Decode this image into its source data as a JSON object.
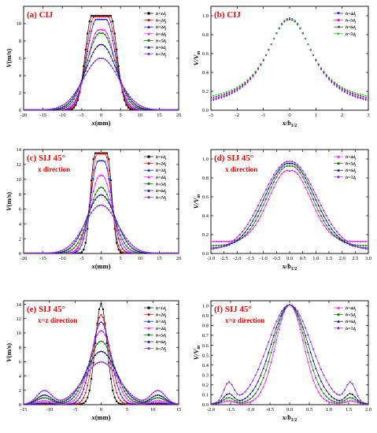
{
  "chart_data": [
    {
      "id": "a",
      "type": "line",
      "label_main": "(a) CIJ",
      "label_sub": "",
      "xlabel": "x(mm)",
      "ylabel": "V(m/s)",
      "xlim": [
        -20,
        20
      ],
      "ylim": [
        0,
        12
      ],
      "xticks": [
        -20,
        -15,
        -10,
        -5,
        0,
        5,
        10,
        15,
        20
      ],
      "yticks": [
        0,
        2,
        4,
        6,
        8,
        10
      ],
      "legend": "top-right",
      "profile": "plateau",
      "series": [
        {
          "name": "h=1dj",
          "color": "#000000",
          "marker": "square",
          "peak": 10.9,
          "width": 2.4,
          "core": 2.4
        },
        {
          "name": "h=2dj",
          "color": "#ff0000",
          "marker": "circle",
          "peak": 10.8,
          "width": 2.9,
          "core": 1.8
        },
        {
          "name": "h=3dj",
          "color": "#0000ff",
          "marker": "triangle",
          "peak": 10.5,
          "width": 3.5,
          "core": 1.2
        },
        {
          "name": "h=4dj",
          "color": "#ff00ff",
          "marker": "triangle",
          "peak": 9.3,
          "width": 4.2,
          "core": 0.6
        },
        {
          "name": "h=5dj",
          "color": "#008000",
          "marker": "circle",
          "peak": 8.9,
          "width": 4.8,
          "core": 0.3
        },
        {
          "name": "h=6dj",
          "color": "#000080",
          "marker": "triangle",
          "peak": 7.6,
          "width": 5.6,
          "core": 0
        },
        {
          "name": "h=7dj",
          "color": "#8a2be2",
          "marker": "circle",
          "peak": 6.0,
          "width": 6.4,
          "core": 0
        }
      ]
    },
    {
      "id": "b",
      "type": "scatter",
      "label_main": "(b) CIJ",
      "label_sub": "",
      "xlabel": "x/b1/2",
      "ylabel": "V/Vm",
      "xlim": [
        -3,
        3
      ],
      "ylim": [
        0,
        1.1
      ],
      "xticks": [
        -3,
        -2,
        -1,
        0,
        1,
        2,
        3
      ],
      "yticks": [
        0.0,
        0.2,
        0.4,
        0.6,
        0.8,
        1.0
      ],
      "legend": "top-right",
      "profile": "normalized",
      "series": [
        {
          "name": "h=4dj",
          "color": "#0000ff",
          "marker": "triangle-down",
          "tail": 0.03
        },
        {
          "name": "h=5dj",
          "color": "#ff00ff",
          "marker": "circle",
          "tail": 0.035
        },
        {
          "name": "h=6dj",
          "color": "#333333",
          "marker": "triangle-left",
          "tail": 0.04
        },
        {
          "name": "h=7dj",
          "color": "#00cc00",
          "marker": "triangle-right",
          "tail": 0.045
        }
      ]
    },
    {
      "id": "c",
      "type": "line",
      "label_main": "(c) SIJ 45°",
      "label_sub": "x direction",
      "xlabel": "x(mm)",
      "ylabel": "V(m/s)",
      "xlim": [
        -20,
        20
      ],
      "ylim": [
        0,
        14
      ],
      "xticks": [
        -20,
        -15,
        -10,
        -5,
        0,
        5,
        10,
        15,
        20
      ],
      "yticks": [
        0,
        2,
        4,
        6,
        8,
        10,
        12,
        14
      ],
      "legend": "top-right",
      "profile": "sij",
      "series": [
        {
          "name": "h=1dj",
          "color": "#000000",
          "marker": "square",
          "peak": 13.5,
          "width": 1.6,
          "core": 1.6
        },
        {
          "name": "h=2dj",
          "color": "#ff0000",
          "marker": "circle",
          "peak": 13.4,
          "width": 2.1,
          "core": 1.1
        },
        {
          "name": "h=3dj",
          "color": "#0000ff",
          "marker": "triangle",
          "peak": 12.5,
          "width": 2.8,
          "core": 0.7
        },
        {
          "name": "h=4dj",
          "color": "#ff00ff",
          "marker": "triangle",
          "peak": 10.5,
          "width": 3.6,
          "core": 0.3
        },
        {
          "name": "h=5dj",
          "color": "#008000",
          "marker": "circle",
          "peak": 8.9,
          "width": 4.4,
          "core": 0
        },
        {
          "name": "h=6dj",
          "color": "#000080",
          "marker": "triangle",
          "peak": 7.9,
          "width": 5.2,
          "core": 0
        },
        {
          "name": "h=7dj",
          "color": "#8a2be2",
          "marker": "circle",
          "peak": 6.5,
          "width": 6.0,
          "core": 0
        }
      ]
    },
    {
      "id": "d",
      "type": "line",
      "label_main": "(d) SIJ 45°",
      "label_sub": "x direction",
      "xlabel": "x/b1/2",
      "ylabel": "V/Vm",
      "xlim": [
        -3,
        3
      ],
      "ylim": [
        0,
        1.1
      ],
      "xticks": [
        -3.0,
        -2.5,
        -2.0,
        -1.5,
        -1.0,
        -0.5,
        0.0,
        0.5,
        1.0,
        1.5,
        2.0,
        2.5,
        3.0
      ],
      "yticks": [
        0.0,
        0.2,
        0.4,
        0.6,
        0.8,
        1.0
      ],
      "legend": "top-right",
      "profile": "normalized-spread",
      "series": [
        {
          "name": "h=4dj",
          "color": "#ff00ff",
          "marker": "triangle",
          "tail": 0.13,
          "sharp": 0.9
        },
        {
          "name": "h=5dj",
          "color": "#008000",
          "marker": "circle",
          "tail": 0.08,
          "sharp": 1.0
        },
        {
          "name": "h=6dj",
          "color": "#000080",
          "marker": "triangle",
          "tail": 0.05,
          "sharp": 1.1
        },
        {
          "name": "h=7dj",
          "color": "#8a2be2",
          "marker": "circle",
          "tail": 0.03,
          "sharp": 1.2
        }
      ]
    },
    {
      "id": "e",
      "type": "line",
      "label_main": "(e) SIJ 45°",
      "label_sub": "x=z direction",
      "xlabel": "x(mm)",
      "ylabel": "V(m/s)",
      "xlim": [
        -15,
        15
      ],
      "ylim": [
        0,
        14.5
      ],
      "xticks": [
        -15,
        -10,
        -5,
        0,
        5,
        10,
        15
      ],
      "yticks": [
        0,
        2,
        4,
        6,
        8,
        10,
        12,
        14
      ],
      "legend": "top-right",
      "profile": "sij-xz",
      "series": [
        {
          "name": "h=1dj",
          "color": "#000000",
          "marker": "square",
          "peak": 14.0,
          "width": 1.6,
          "side": 0
        },
        {
          "name": "h=2dj",
          "color": "#ff0000",
          "marker": "circle",
          "peak": 12.5,
          "width": 2.1,
          "side": 0.1
        },
        {
          "name": "h=3dj",
          "color": "#0000ff",
          "marker": "triangle",
          "peak": 11.5,
          "width": 2.6,
          "side": 0.2
        },
        {
          "name": "h=4dj",
          "color": "#ff00ff",
          "marker": "triangle",
          "peak": 10.3,
          "width": 3.1,
          "side": 0.5
        },
        {
          "name": "h=5dj",
          "color": "#008000",
          "marker": "circle",
          "peak": 8.8,
          "width": 3.6,
          "side": 0.9
        },
        {
          "name": "h=6dj",
          "color": "#000080",
          "marker": "triangle",
          "peak": 7.4,
          "width": 4.2,
          "side": 1.3
        },
        {
          "name": "h=7dj",
          "color": "#8a2be2",
          "marker": "circle",
          "peak": 5.9,
          "width": 4.8,
          "side": 1.9
        }
      ]
    },
    {
      "id": "f",
      "type": "line",
      "label_main": "(f) SIJ 45°",
      "label_sub": "x=z direction",
      "xlabel": "x/b1/2",
      "ylabel": "V/Vm",
      "xlim": [
        -2,
        2
      ],
      "ylim": [
        0,
        1.05
      ],
      "xticks": [
        -2.0,
        -1.5,
        -1.0,
        -0.5,
        0.0,
        0.5,
        1.0,
        1.5,
        2.0
      ],
      "yticks": [
        0.0,
        0.1,
        0.2,
        0.3,
        0.4,
        0.5,
        0.6,
        0.7,
        0.8,
        0.9,
        1.0
      ],
      "legend": "top-right",
      "profile": "normalized-xz",
      "series": [
        {
          "name": "h=4dj",
          "color": "#ff00ff",
          "marker": "triangle",
          "width": 0.55,
          "side": 0.03
        },
        {
          "name": "h=5dj",
          "color": "#008000",
          "marker": "circle",
          "width": 0.63,
          "side": 0.06
        },
        {
          "name": "h=6dj",
          "color": "#000080",
          "marker": "triangle",
          "width": 0.72,
          "side": 0.1
        },
        {
          "name": "h=7dj",
          "color": "#8a2be2",
          "marker": "circle",
          "width": 0.85,
          "side": 0.2
        }
      ]
    }
  ]
}
